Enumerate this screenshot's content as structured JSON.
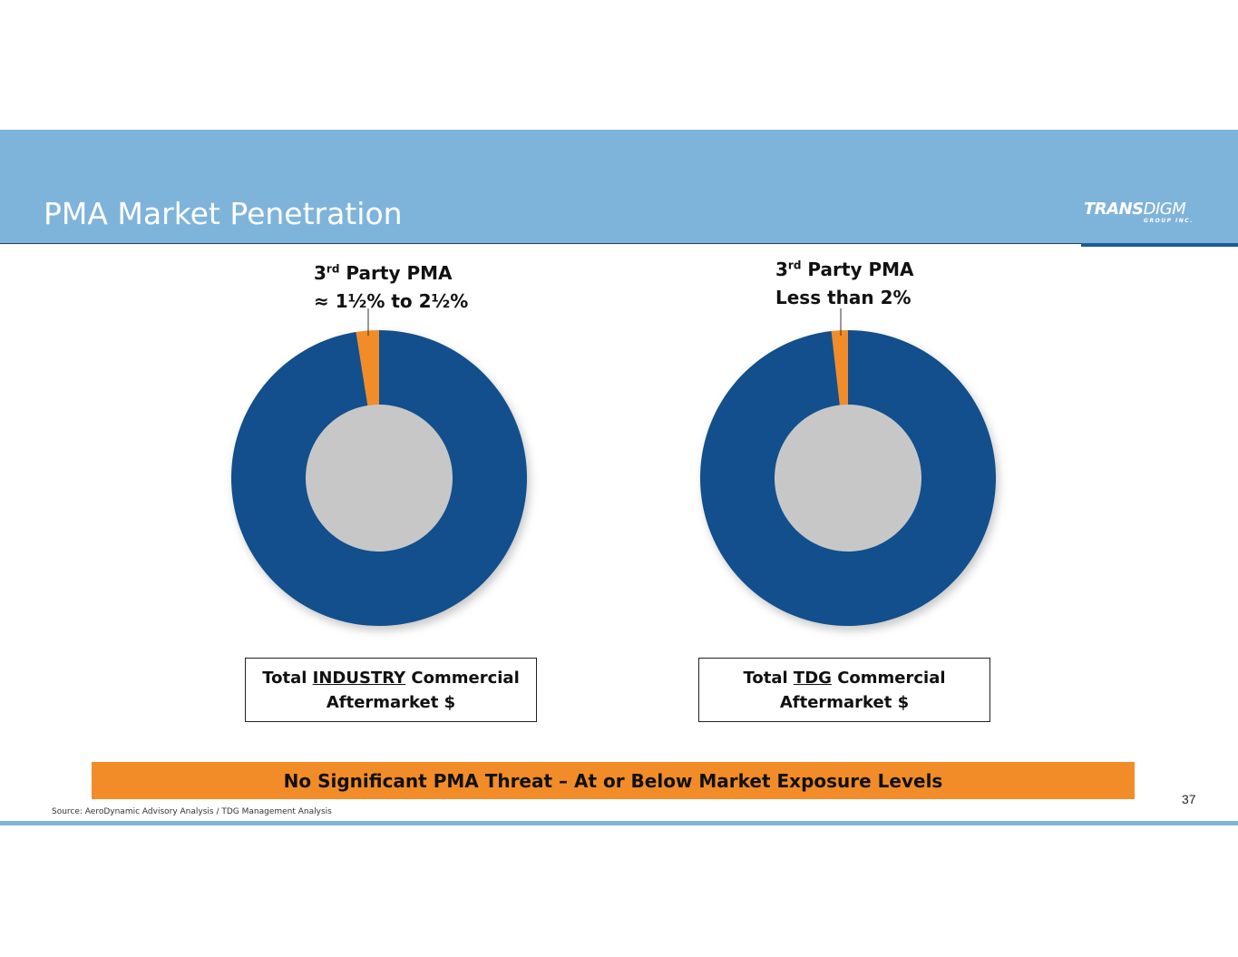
{
  "header": {
    "title": "PMA Market Penetration",
    "logo": {
      "main_bold": "TRANS",
      "main_light": "DIGM",
      "sub": "GROUP INC."
    }
  },
  "colors": {
    "header_band": "#7fb4da",
    "donut_main": "#124f8c",
    "donut_pma": "#f28c28",
    "banner": "#f28c28"
  },
  "chart_data": [
    {
      "type": "pie",
      "style": "donut",
      "slices": [
        {
          "label": "3rd Party PMA",
          "value": 2.5,
          "color": "#f28c28"
        },
        {
          "label": "",
          "value": 97.5,
          "color": "#124f8c"
        }
      ],
      "callout": {
        "line1_pre": "3",
        "line1_sup": "rd",
        "line1_post": " Party PMA",
        "line2": "≈ 1½% to 2½%"
      },
      "caption": {
        "pre": "Total ",
        "underlined": "INDUSTRY",
        "post": " Commercial",
        "line2": "Aftermarket $"
      }
    },
    {
      "type": "pie",
      "style": "donut",
      "slices": [
        {
          "label": "3rd Party PMA",
          "value": 1.8,
          "color": "#f28c28"
        },
        {
          "label": "",
          "value": 98.2,
          "color": "#124f8c"
        }
      ],
      "callout": {
        "line1_pre": "3",
        "line1_sup": "rd",
        "line1_post": " Party PMA",
        "line2": "Less than 2%"
      },
      "caption": {
        "pre": "Total ",
        "underlined": "TDG",
        "post": " Commercial",
        "line2": "Aftermarket $"
      }
    }
  ],
  "banner": {
    "text": "No Significant PMA Threat – At or Below Market Exposure Levels"
  },
  "footer": {
    "source": "Source: AeroDynamic Advisory Analysis / TDG Management Analysis",
    "page_number": "37"
  }
}
